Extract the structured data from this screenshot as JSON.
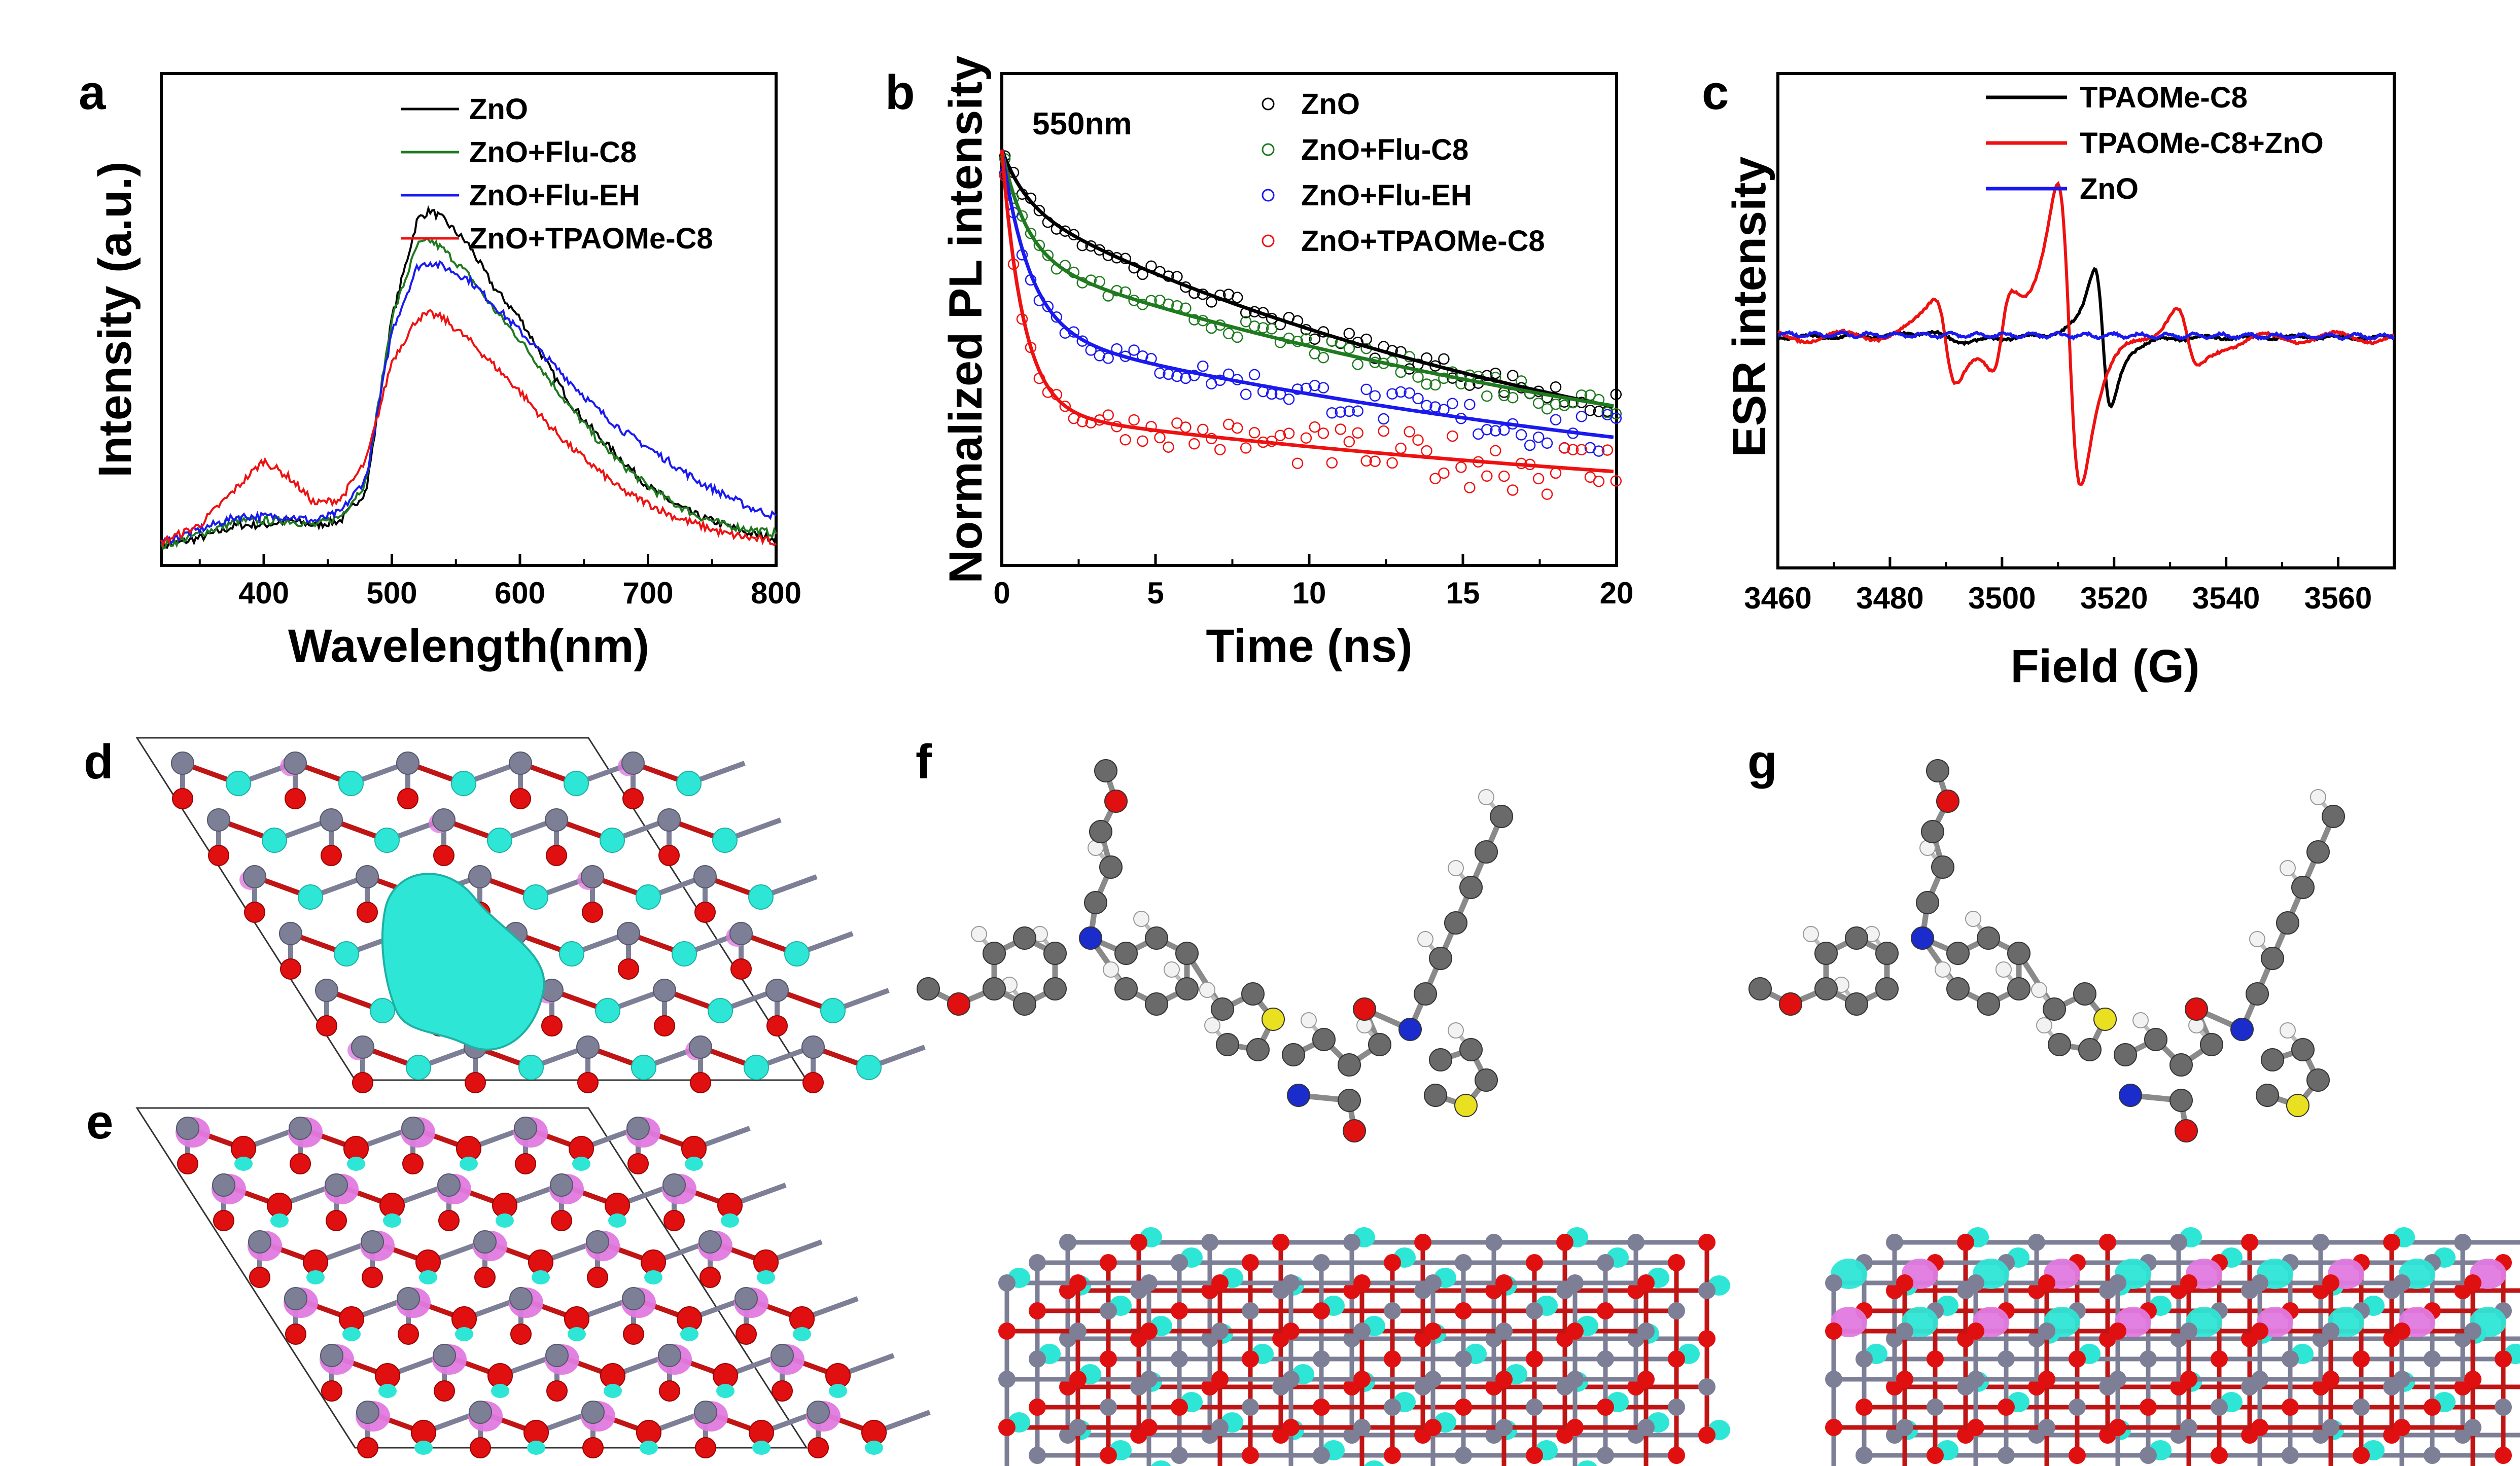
{
  "panel_letters": [
    "a",
    "b",
    "c",
    "d",
    "e",
    "f",
    "g"
  ],
  "colors": {
    "black": "#000000",
    "green": "#1f7a1f",
    "blue": "#1a1aee",
    "red": "#ee1111",
    "cyan": "#2ee6d6",
    "magenta": "#e07ae0",
    "atom_grey": "#7d7f96",
    "atom_red": "#e01010",
    "atom_white": "#f2f2f2",
    "atom_yellow": "#e8e020",
    "atom_blue": "#1a2ccc",
    "atom_dark": "#6a6a6a"
  },
  "chart_data": [
    {
      "type": "line",
      "panel": "a",
      "xlabel": "Wavelength(nm)",
      "ylabel": "Intensity (a.u.)",
      "xlim": [
        320,
        800
      ],
      "ylim": [
        0,
        1
      ],
      "xticks": [
        400,
        500,
        600,
        700,
        800
      ],
      "yticks_shown": false,
      "grid": false,
      "legend_position": "top-right",
      "x": [
        320,
        350,
        380,
        400,
        420,
        440,
        460,
        480,
        500,
        520,
        530,
        540,
        560,
        580,
        600,
        620,
        640,
        660,
        680,
        700,
        720,
        740,
        760,
        780,
        800
      ],
      "series": [
        {
          "name": "ZnO",
          "color": "black",
          "values": [
            0.02,
            0.04,
            0.07,
            0.07,
            0.08,
            0.07,
            0.08,
            0.15,
            0.55,
            0.78,
            0.8,
            0.78,
            0.72,
            0.62,
            0.55,
            0.45,
            0.35,
            0.28,
            0.22,
            0.16,
            0.12,
            0.09,
            0.07,
            0.05,
            0.04
          ]
        },
        {
          "name": "ZnO+Flu-C8",
          "color": "green",
          "values": [
            0.02,
            0.05,
            0.08,
            0.08,
            0.08,
            0.07,
            0.09,
            0.17,
            0.55,
            0.72,
            0.73,
            0.71,
            0.65,
            0.57,
            0.5,
            0.42,
            0.34,
            0.27,
            0.21,
            0.16,
            0.12,
            0.09,
            0.07,
            0.06,
            0.05
          ]
        },
        {
          "name": "ZnO+Flu-EH",
          "color": "blue",
          "values": [
            0.03,
            0.06,
            0.09,
            0.09,
            0.09,
            0.08,
            0.1,
            0.18,
            0.52,
            0.67,
            0.68,
            0.67,
            0.64,
            0.58,
            0.52,
            0.46,
            0.4,
            0.34,
            0.29,
            0.25,
            0.21,
            0.17,
            0.14,
            0.11,
            0.09
          ]
        },
        {
          "name": "ZnO+TPAOMe-C8",
          "color": "red",
          "values": [
            0.03,
            0.07,
            0.16,
            0.22,
            0.18,
            0.12,
            0.13,
            0.22,
            0.45,
            0.55,
            0.56,
            0.55,
            0.5,
            0.44,
            0.38,
            0.31,
            0.25,
            0.2,
            0.15,
            0.12,
            0.09,
            0.07,
            0.05,
            0.04,
            0.03
          ]
        }
      ]
    },
    {
      "type": "scatter",
      "panel": "b",
      "xlabel": "Time (ns)",
      "ylabel": "Normalized PL intensity",
      "annotation": "550nm",
      "xlim": [
        0,
        20
      ],
      "ylim": [
        0,
        1
      ],
      "xticks": [
        0,
        5,
        10,
        15,
        20
      ],
      "yticks_shown": false,
      "grid": false,
      "legend_position": "top-right",
      "fit_lines": true,
      "series": [
        {
          "name": "ZnO",
          "color": "black",
          "fit": {
            "a1": 0.14,
            "t1": 0.8,
            "a2": 0.86,
            "t2": 21.0,
            "base": 0.0
          }
        },
        {
          "name": "ZnO+Flu-C8",
          "color": "green",
          "fit": {
            "a1": 0.28,
            "t1": 0.8,
            "a2": 0.72,
            "t2": 26.0,
            "base": 0.0
          }
        },
        {
          "name": "ZnO+Flu-EH",
          "color": "blue",
          "fit": {
            "a1": 0.47,
            "t1": 0.9,
            "a2": 0.53,
            "t2": 27.0,
            "base": 0.0
          }
        },
        {
          "name": "ZnO+TPAOMe-C8",
          "color": "red",
          "fit": {
            "a1": 0.68,
            "t1": 0.7,
            "a2": 0.32,
            "t2": 30.0,
            "base": 0.0
          }
        }
      ]
    },
    {
      "type": "line",
      "panel": "c",
      "xlabel": "Field (G)",
      "ylabel": "ESR intensity",
      "xlim": [
        3460,
        3570
      ],
      "xticks": [
        3460,
        3480,
        3500,
        3520,
        3540,
        3560
      ],
      "yticks_shown": false,
      "grid": false,
      "legend_position": "top-right",
      "series": [
        {
          "name": "TPAOMe-C8",
          "color": "black"
        },
        {
          "name": "TPAOMe-C8+ZnO",
          "color": "red"
        },
        {
          "name": "ZnO",
          "color": "blue"
        }
      ]
    }
  ]
}
